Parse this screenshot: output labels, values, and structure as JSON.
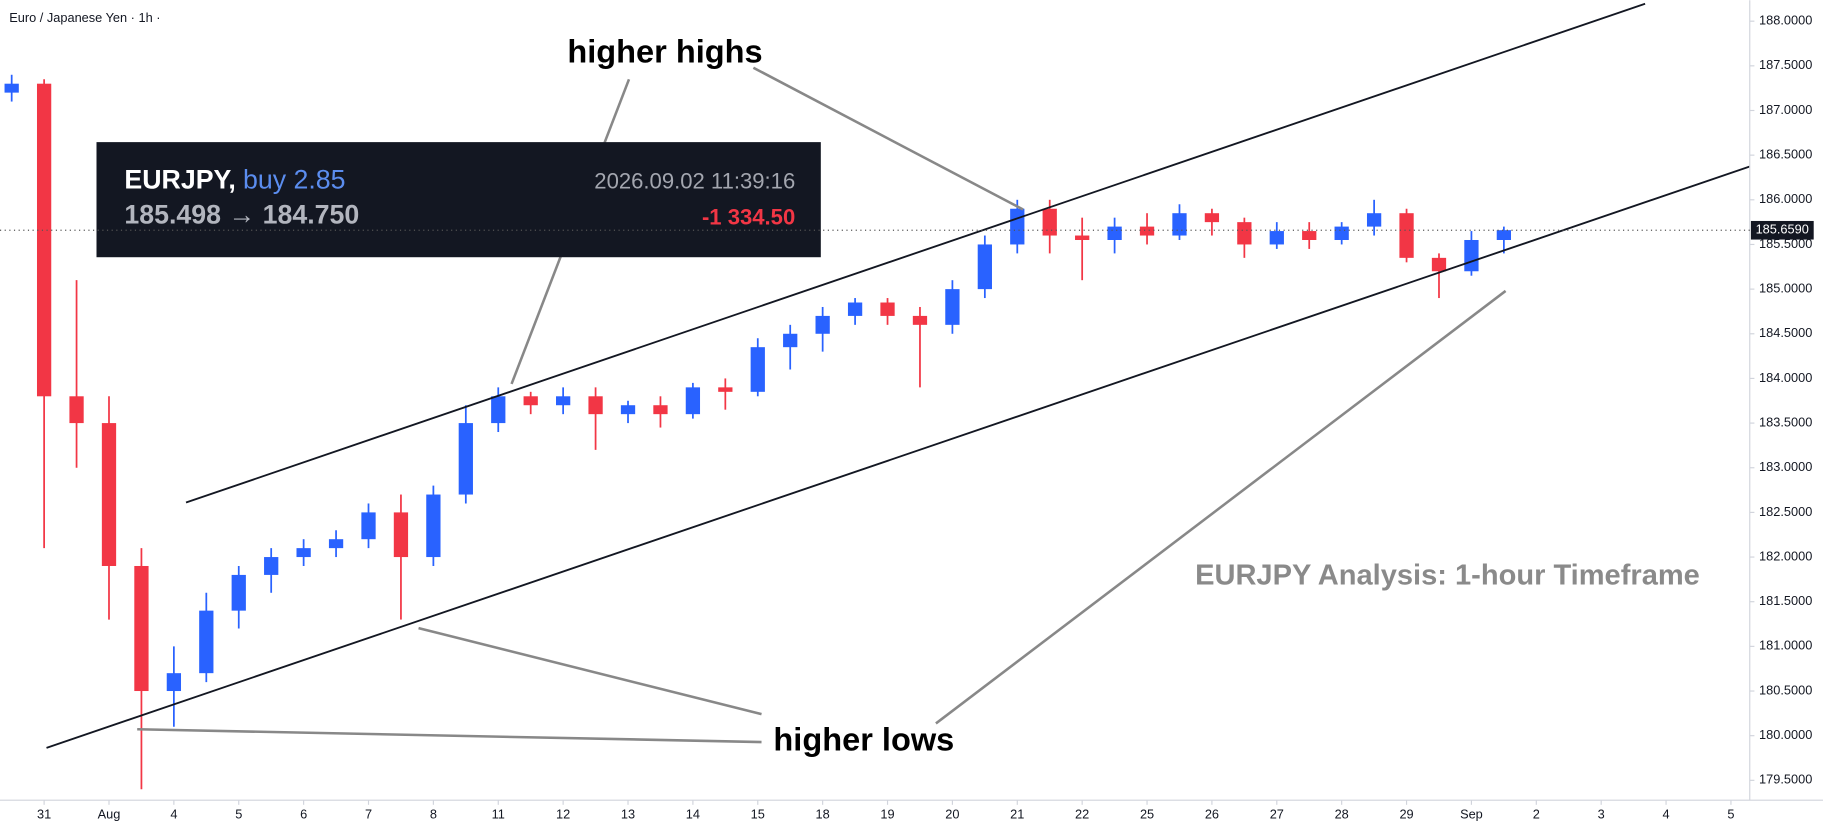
{
  "header": {
    "symbol_line": "Euro / Japanese Yen · 1h ·"
  },
  "trade_panel": {
    "symbol": "EURJPY,",
    "side": "buy 2.85",
    "time": "2026.09.02 11:39:16",
    "prices": "185.498 → 184.750",
    "pnl": "-1 334.50"
  },
  "chart_data": {
    "type": "candlestick",
    "up_color": "#2962ff",
    "down_color": "#f23645",
    "grid": false,
    "candles": {
      "open": [
        187.2,
        187.3,
        183.8,
        183.5,
        181.9,
        180.5,
        180.7,
        181.4,
        181.8,
        182.0,
        182.1,
        182.2,
        182.5,
        182.0,
        182.7,
        183.5,
        183.8,
        183.7,
        183.8,
        183.6,
        183.7,
        183.6,
        183.9,
        183.85,
        184.35,
        184.5,
        184.7,
        184.85,
        184.7,
        184.6,
        185.0,
        185.5,
        185.9,
        185.6,
        185.55,
        185.7,
        185.6,
        185.85,
        185.75,
        185.5,
        185.65,
        185.55,
        185.7,
        185.85,
        185.35,
        185.2,
        185.55
      ],
      "high": [
        187.4,
        187.35,
        185.1,
        183.8,
        182.1,
        181.0,
        181.6,
        181.9,
        182.1,
        182.2,
        182.3,
        182.6,
        182.7,
        182.8,
        183.7,
        183.9,
        183.85,
        183.9,
        183.9,
        183.75,
        183.8,
        183.95,
        184.0,
        184.45,
        184.6,
        184.8,
        184.9,
        184.9,
        184.8,
        185.1,
        185.6,
        186.0,
        186.0,
        185.8,
        185.8,
        185.85,
        185.95,
        185.9,
        185.8,
        185.75,
        185.75,
        185.75,
        186.0,
        185.9,
        185.4,
        185.65,
        185.7
      ],
      "low": [
        187.1,
        182.1,
        183.0,
        181.3,
        179.4,
        180.1,
        180.6,
        181.2,
        181.6,
        181.9,
        182.0,
        182.1,
        181.3,
        181.9,
        182.6,
        183.4,
        183.6,
        183.6,
        183.2,
        183.5,
        183.45,
        183.55,
        183.65,
        183.8,
        184.1,
        184.3,
        184.6,
        184.6,
        183.9,
        184.5,
        184.9,
        185.4,
        185.4,
        185.1,
        185.4,
        185.5,
        185.55,
        185.6,
        185.35,
        185.45,
        185.45,
        185.5,
        185.6,
        185.3,
        184.9,
        185.15,
        185.4
      ],
      "close": [
        187.3,
        183.8,
        183.5,
        181.9,
        180.5,
        180.7,
        181.4,
        181.8,
        182.0,
        182.1,
        182.2,
        182.5,
        182.0,
        182.7,
        183.5,
        183.8,
        183.7,
        183.8,
        183.6,
        183.7,
        183.6,
        183.9,
        183.85,
        184.35,
        184.5,
        184.7,
        184.85,
        184.7,
        184.6,
        185.0,
        185.5,
        185.9,
        185.6,
        185.55,
        185.7,
        185.6,
        185.85,
        185.75,
        185.5,
        185.65,
        185.55,
        185.7,
        185.85,
        185.35,
        185.2,
        185.55,
        185.66
      ]
    },
    "ylim": [
      179.278,
      188.234
    ],
    "yticks": [
      {
        "value": 179.5,
        "label": "179.5000"
      },
      {
        "value": 180,
        "label": "180.0000"
      },
      {
        "value": 180.5,
        "label": "180.5000"
      },
      {
        "value": 181,
        "label": "181.0000"
      },
      {
        "value": 181.5,
        "label": "181.5000"
      },
      {
        "value": 182,
        "label": "182.0000"
      },
      {
        "value": 182.5,
        "label": "182.5000"
      },
      {
        "value": 183,
        "label": "183.0000"
      },
      {
        "value": 183.5,
        "label": "183.5000"
      },
      {
        "value": 184,
        "label": "184.0000"
      },
      {
        "value": 184.5,
        "label": "184.5000"
      },
      {
        "value": 185,
        "label": "185.0000"
      },
      {
        "value": 185.5,
        "label": "185.5000"
      },
      {
        "value": 186,
        "label": "186.0000"
      },
      {
        "value": 186.5,
        "label": "186.5000"
      },
      {
        "value": 187,
        "label": "187.0000"
      },
      {
        "value": 187.5,
        "label": "187.5000"
      },
      {
        "value": 188,
        "label": "188.0000"
      }
    ],
    "xlim": [
      -0.36,
      53.58
    ],
    "xticks": [
      {
        "value": 1,
        "label": "31"
      },
      {
        "value": 3,
        "label": "Aug"
      },
      {
        "value": 5,
        "label": "4"
      },
      {
        "value": 7,
        "label": "5"
      },
      {
        "value": 9,
        "label": "6"
      },
      {
        "value": 11,
        "label": "7"
      },
      {
        "value": 13,
        "label": "8"
      },
      {
        "value": 15,
        "label": "11"
      },
      {
        "value": 17,
        "label": "12"
      },
      {
        "value": 19,
        "label": "13"
      },
      {
        "value": 21,
        "label": "14"
      },
      {
        "value": 23,
        "label": "15"
      },
      {
        "value": 25,
        "label": "18"
      },
      {
        "value": 27,
        "label": "19"
      },
      {
        "value": 29,
        "label": "20"
      },
      {
        "value": 31,
        "label": "21"
      },
      {
        "value": 33,
        "label": "22"
      },
      {
        "value": 35,
        "label": "25"
      },
      {
        "value": 37,
        "label": "26"
      },
      {
        "value": 39,
        "label": "27"
      },
      {
        "value": 41,
        "label": "28"
      },
      {
        "value": 43,
        "label": "29"
      },
      {
        "value": 45,
        "label": "Sep"
      },
      {
        "value": 47,
        "label": "2"
      },
      {
        "value": 49,
        "label": "3"
      },
      {
        "value": 51,
        "label": "4"
      },
      {
        "value": 53,
        "label": "5"
      }
    ],
    "last_price": {
      "value": 185.659,
      "label": "185.6590"
    },
    "annotations": [
      "higher highs",
      "higher lows",
      "EURJPY Analysis: 1-hour Timeframe"
    ]
  }
}
